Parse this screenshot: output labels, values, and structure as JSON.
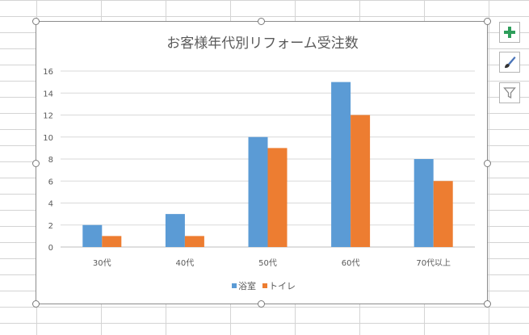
{
  "chart_data": {
    "type": "bar",
    "title": "お客様年代別リフォーム受注数",
    "categories": [
      "30代",
      "40代",
      "50代",
      "60代",
      "70代以上"
    ],
    "series": [
      {
        "name": "浴室",
        "color": "#5b9bd5",
        "values": [
          2,
          3,
          10,
          15,
          8
        ]
      },
      {
        "name": "トイレ",
        "color": "#ed7d31",
        "values": [
          1,
          1,
          9,
          12,
          6
        ]
      }
    ],
    "ylim": [
      0,
      16
    ],
    "yticks": [
      "0",
      "2",
      "4",
      "6",
      "8",
      "10",
      "12",
      "14",
      "16"
    ],
    "grid": true,
    "legend": "bottom"
  },
  "side_buttons": {
    "add_icon": "plus-icon",
    "style_icon": "paintbrush-icon",
    "filter_icon": "funnel-icon"
  },
  "colors": {
    "plus": "#2e9e5b",
    "brush": "#4a74b8",
    "filter": "#8a8a8a"
  }
}
